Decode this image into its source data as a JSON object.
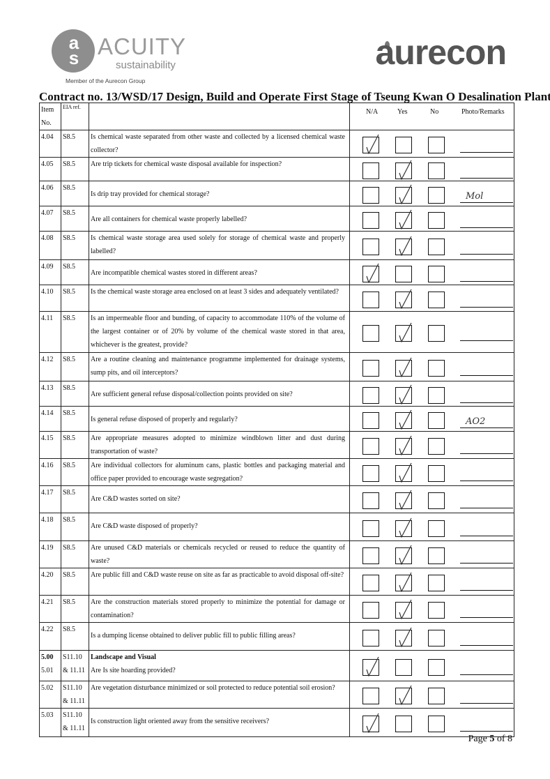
{
  "header": {
    "left_logo": {
      "mark": "acs",
      "name": "ACUITY",
      "tagline": "sustainability",
      "member": "Member of the Aurecon Group"
    },
    "right_logo": "aurecon",
    "title": "Contract no.  13/WSD/17 Design, Build and Operate First Stage of Tseung Kwan O Desalination Plant"
  },
  "table": {
    "columns": {
      "item": "Item No.",
      "eia": "EIA ref.",
      "na": "N/A",
      "yes": "Yes",
      "no": "No",
      "remarks": "Photo/Remarks"
    },
    "rows": [
      {
        "item": "4.04",
        "eia": "S8.5",
        "question": "Is chemical waste separated from other waste and collected by a licensed chemical waste collector?",
        "answer": "na"
      },
      {
        "item": "4.05",
        "eia": "S8.5",
        "question": "Are trip tickets for chemical waste disposal available for inspection?",
        "answer": "yes"
      },
      {
        "item": "4.06",
        "eia": "S8.5",
        "question": "Is drip tray provided for chemical storage?",
        "answer": "yes",
        "remark": "Mol"
      },
      {
        "item": "4.07",
        "eia": "S8.5",
        "question": "Are all containers for chemical waste properly labelled?",
        "answer": "yes"
      },
      {
        "item": "4.08",
        "eia": "S8.5",
        "question": "Is chemical waste storage area used solely for storage of chemical waste and properly labelled?",
        "answer": "yes"
      },
      {
        "item": "4.09",
        "eia": "S8.5",
        "question": "Are incompatible chemical wastes stored in different areas?",
        "answer": "na"
      },
      {
        "item": "4.10",
        "eia": "S8.5",
        "question": "Is the chemical waste storage area enclosed on at least 3 sides and adequately ventilated?",
        "answer": "yes"
      },
      {
        "item": "4.11",
        "eia": "S8.5",
        "question": "Is an impermeable floor and bunding, of capacity to accommodate 110% of the volume of the largest container or of 20% by volume of the chemical waste stored in that area, whichever is the greatest, provide?",
        "answer": "yes"
      },
      {
        "item": "4.12",
        "eia": "S8.5",
        "question": "Are a routine cleaning and maintenance programme implemented for drainage systems, sump pits, and oil interceptors?",
        "answer": "yes"
      },
      {
        "item": "4.13",
        "eia": "S8.5",
        "question": "Are sufficient general refuse disposal/collection points provided on site?",
        "answer": "yes"
      },
      {
        "item": "4.14",
        "eia": "S8.5",
        "question": "Is general refuse disposed of properly and regularly?",
        "answer": "yes",
        "remark": "AO2"
      },
      {
        "item": "4.15",
        "eia": "S8.5",
        "question": "Are appropriate measures adopted to minimize windblown litter and dust during transportation of waste?",
        "answer": "yes"
      },
      {
        "item": "4.16",
        "eia": "S8.5",
        "question": "Are individual collectors for aluminum cans, plastic bottles and packaging material and office paper provided to encourage waste segregation?",
        "answer": "yes"
      },
      {
        "item": "4.17",
        "eia": "S8.5",
        "question": "Are C&D wastes sorted on site?",
        "answer": "yes"
      },
      {
        "item": "4.18",
        "eia": "S8.5",
        "question": "Are C&D waste disposed of properly?",
        "answer": "yes"
      },
      {
        "item": "4.19",
        "eia": "S8.5",
        "question": "Are unused C&D materials or chemicals recycled or reused to reduce the quantity of waste?",
        "answer": "yes"
      },
      {
        "item": "4.20",
        "eia": "S8.5",
        "question": "Are public fill and C&D waste reuse on site as far as practicable to avoid disposal off-site?",
        "answer": "yes"
      },
      {
        "item": "4.21",
        "eia": "S8.5",
        "question": "Are the construction materials stored properly to minimize the potential for damage or contamination?",
        "answer": "yes"
      },
      {
        "item": "4.22",
        "eia": "S8.5",
        "question": "Is a dumping license obtained to deliver public fill to public filling areas?",
        "answer": "yes"
      },
      {
        "item": "5.00",
        "item2": "5.01",
        "eia": "S11.10 & 11.11",
        "section": "Landscape and Visual",
        "question": "Are Is site hoarding provided?",
        "answer": "na"
      },
      {
        "item": "5.02",
        "eia": "S11.10 & 11.11",
        "question": "Are vegetation disturbance minimized or soil protected to reduce potential soil erosion?",
        "answer": "yes"
      },
      {
        "item": "5.03",
        "eia": "S11.10 & 11.11",
        "question": "Is construction light oriented away from the sensitive receivers?",
        "answer": "na"
      }
    ]
  },
  "footer": {
    "page_prefix": "Page ",
    "page_current": "5",
    "page_mid": " of ",
    "page_total": "8"
  }
}
